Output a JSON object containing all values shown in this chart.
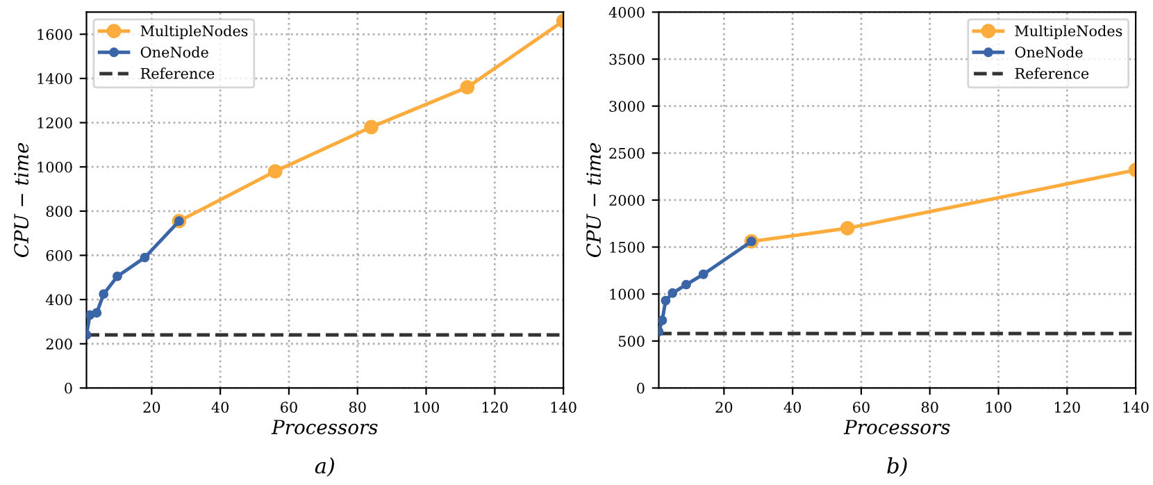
{
  "chart_data": [
    {
      "type": "line",
      "xlabel": "Processors",
      "ylabel": "CPU − time",
      "annotations": [
        "a)"
      ],
      "xlim": [
        1,
        140
      ],
      "ylim": [
        0,
        1700
      ],
      "xticks": [
        20,
        40,
        60,
        80,
        100,
        120,
        140
      ],
      "yticks": [
        0,
        200,
        400,
        600,
        800,
        1000,
        1200,
        1400,
        1600
      ],
      "grid": true,
      "legend": "top left",
      "marker": "circle",
      "line_style": "solid",
      "series": [
        {
          "name": "MultipleNodes",
          "color": "#fbac3c",
          "x": [
            28,
            56,
            84,
            112,
            140
          ],
          "values": [
            755,
            980,
            1180,
            1360,
            1660
          ]
        },
        {
          "name": "OneNode",
          "color": "#3a65a6",
          "x": [
            1,
            2,
            4,
            6,
            10,
            18,
            28
          ],
          "values": [
            240,
            330,
            340,
            425,
            505,
            590,
            755
          ]
        }
      ],
      "ref_lines": [
        {
          "axis": "y",
          "value": 240,
          "label": "Reference",
          "color": "#333333",
          "line_style": "dashed"
        }
      ]
    },
    {
      "type": "line",
      "xlabel": "Processors",
      "ylabel": "CPU − time",
      "annotations": [
        "b)"
      ],
      "xlim": [
        1,
        140
      ],
      "ylim": [
        0,
        4000
      ],
      "xticks": [
        20,
        40,
        60,
        80,
        100,
        120,
        140
      ],
      "yticks": [
        0,
        500,
        1000,
        1500,
        2000,
        2500,
        3000,
        3500,
        4000
      ],
      "grid": true,
      "legend": "top right",
      "marker": "circle",
      "line_style": "solid",
      "series": [
        {
          "name": "MultipleNodes",
          "color": "#fbac3c",
          "x": [
            28,
            56,
            140
          ],
          "values": [
            1560,
            1700,
            2320
          ]
        },
        {
          "name": "OneNode",
          "color": "#3a65a6",
          "x": [
            1,
            2,
            3,
            5,
            9,
            14,
            28
          ],
          "values": [
            600,
            720,
            930,
            1010,
            1100,
            1210,
            1560
          ]
        }
      ],
      "ref_lines": [
        {
          "axis": "y",
          "value": 580,
          "label": "Reference",
          "color": "#333333",
          "line_style": "dashed"
        }
      ]
    }
  ]
}
